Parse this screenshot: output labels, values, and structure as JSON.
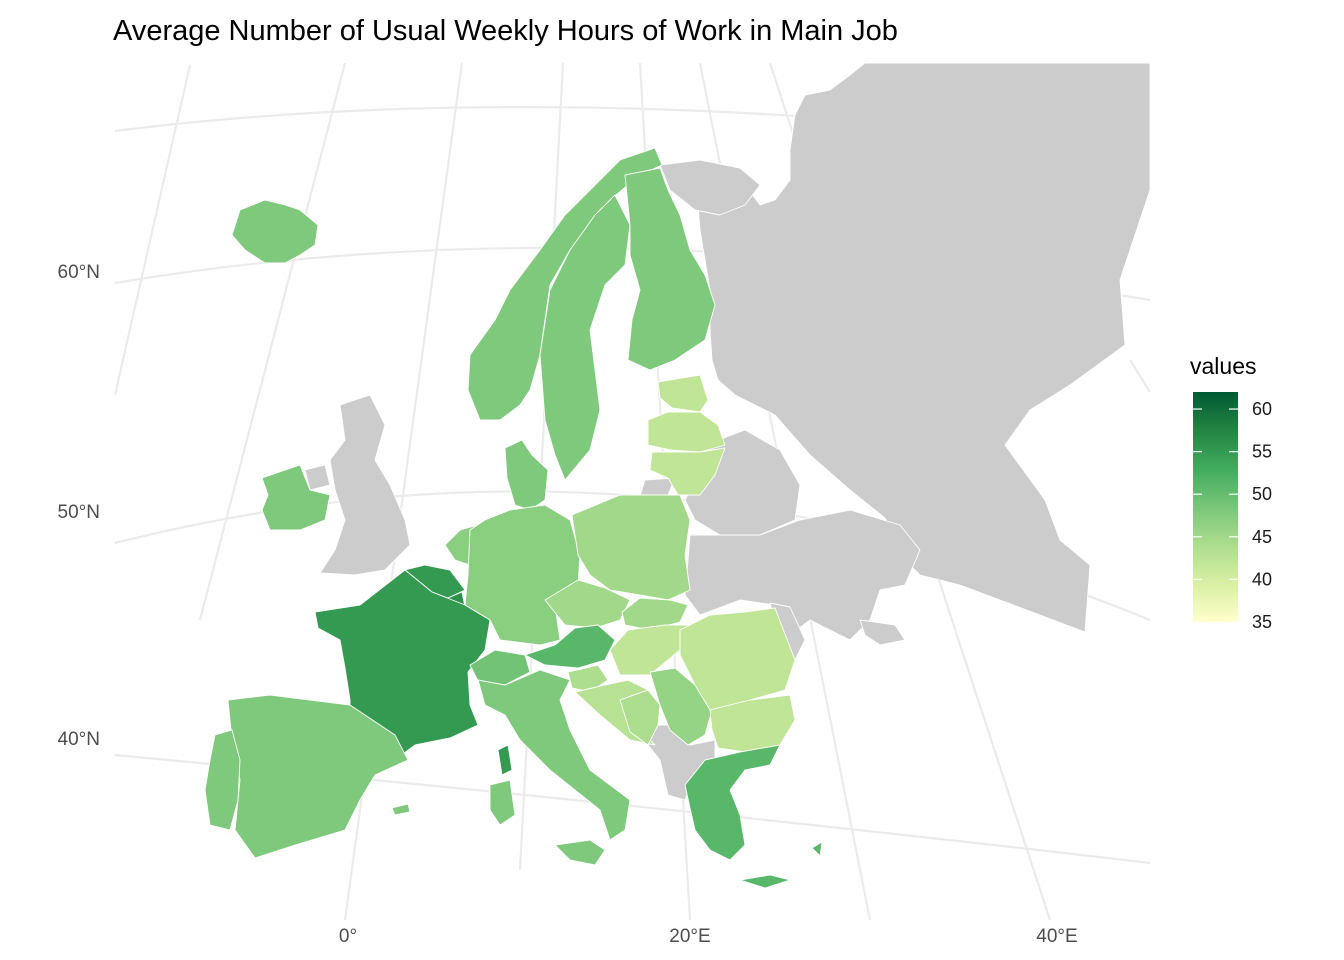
{
  "title": "Average Number of Usual Weekly Hours of Work in Main Job",
  "colors": {
    "no_data": "#cccccc",
    "scale": [
      "#ffffcc",
      "#d9f0a3",
      "#addd8e",
      "#78c679",
      "#41ab5d",
      "#238443",
      "#005a32"
    ],
    "gridline": "#ebebeb",
    "border": "#ffffff"
  },
  "axes": {
    "lat_labels": [
      "60°N",
      "50°N",
      "40°N"
    ],
    "lon_labels": [
      "0°",
      "20°E",
      "40°E"
    ]
  },
  "legend": {
    "title": "values",
    "min": 35,
    "max": 62,
    "ticks": [
      "60",
      "55",
      "50",
      "45",
      "40",
      "35"
    ],
    "placement": "right"
  },
  "regions": [
    {
      "name": "Iceland",
      "value": 48
    },
    {
      "name": "Norway",
      "value": 48
    },
    {
      "name": "Sweden",
      "value": 48
    },
    {
      "name": "Finland",
      "value": 48
    },
    {
      "name": "Estonia",
      "value": 42
    },
    {
      "name": "Latvia",
      "value": 42
    },
    {
      "name": "Lithuania",
      "value": 42
    },
    {
      "name": "Ireland",
      "value": 48
    },
    {
      "name": "Denmark",
      "value": 48
    },
    {
      "name": "Netherlands",
      "value": 47
    },
    {
      "name": "Belgium",
      "value": 55
    },
    {
      "name": "Luxembourg",
      "value": 56
    },
    {
      "name": "France",
      "value": 55
    },
    {
      "name": "Germany",
      "value": 47
    },
    {
      "name": "Poland",
      "value": 45
    },
    {
      "name": "Czechia",
      "value": 45
    },
    {
      "name": "Slovakia",
      "value": 45
    },
    {
      "name": "Austria",
      "value": 51
    },
    {
      "name": "Switzerland",
      "value": 49
    },
    {
      "name": "Hungary",
      "value": 42
    },
    {
      "name": "Slovenia",
      "value": 44
    },
    {
      "name": "Croatia",
      "value": 43
    },
    {
      "name": "Bosnia and Herzegovina",
      "value": 44
    },
    {
      "name": "Serbia",
      "value": 46
    },
    {
      "name": "Romania",
      "value": 42
    },
    {
      "name": "Bulgaria",
      "value": 42
    },
    {
      "name": "Spain",
      "value": 48
    },
    {
      "name": "Portugal",
      "value": 48
    },
    {
      "name": "Italy",
      "value": 48
    },
    {
      "name": "Corsica",
      "value": 55
    },
    {
      "name": "Sardinia",
      "value": 48
    },
    {
      "name": "Sicily",
      "value": 48
    },
    {
      "name": "Greece",
      "value": 51
    },
    {
      "name": "Crete",
      "value": 51
    },
    {
      "name": "Cyprus",
      "value": 51
    },
    {
      "name": "Balearic Islands",
      "value": 48
    }
  ],
  "no_data_regions": [
    "United Kingdom",
    "Russia",
    "Belarus",
    "Ukraine",
    "Moldova",
    "Montenegro",
    "Albania",
    "North Macedonia",
    "Kosovo",
    "Kaliningrad"
  ]
}
